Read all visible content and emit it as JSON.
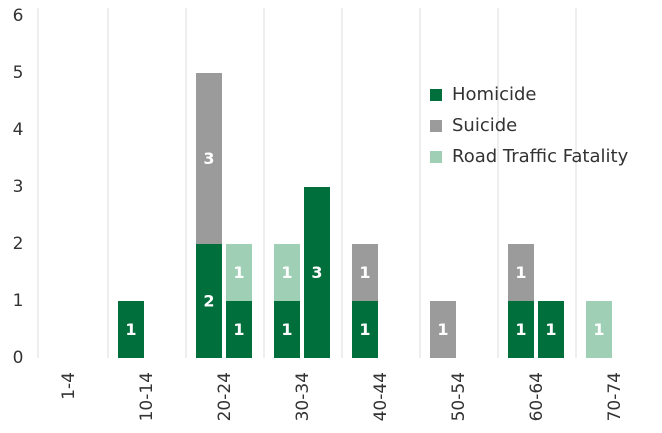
{
  "chart_data": {
    "type": "grouped-stacked-bar",
    "categories": [
      "1-4",
      "10-14",
      "20-24",
      "30-34",
      "40-44",
      "50-54",
      "60-64",
      "70-74"
    ],
    "series": [
      {
        "name": "Homicide",
        "color": "#006f3c"
      },
      {
        "name": "Suicide",
        "color": "#9b9b9b"
      },
      {
        "name": "Road Traffic Fatality",
        "color": "#9fd0b6"
      }
    ],
    "bars": [
      [],
      [
        {
          "Homicide": 1
        }
      ],
      [
        {
          "Homicide": 2,
          "Suicide": 3
        },
        {
          "Homicide": 1,
          "Road Traffic Fatality": 1
        }
      ],
      [
        {
          "Homicide": 1,
          "Road Traffic Fatality": 1
        },
        {
          "Homicide": 3
        }
      ],
      [
        {
          "Homicide": 1,
          "Suicide": 1
        }
      ],
      [
        {
          "Suicide": 1
        }
      ],
      [
        {
          "Homicide": 1,
          "Suicide": 1
        },
        {
          "Homicide": 1
        }
      ],
      [
        {
          "Road Traffic Fatality": 1
        }
      ]
    ],
    "ylim": [
      0,
      6
    ],
    "yticks": [
      0,
      1,
      2,
      3,
      4,
      5,
      6
    ],
    "grid": true,
    "legend": "upper right"
  }
}
